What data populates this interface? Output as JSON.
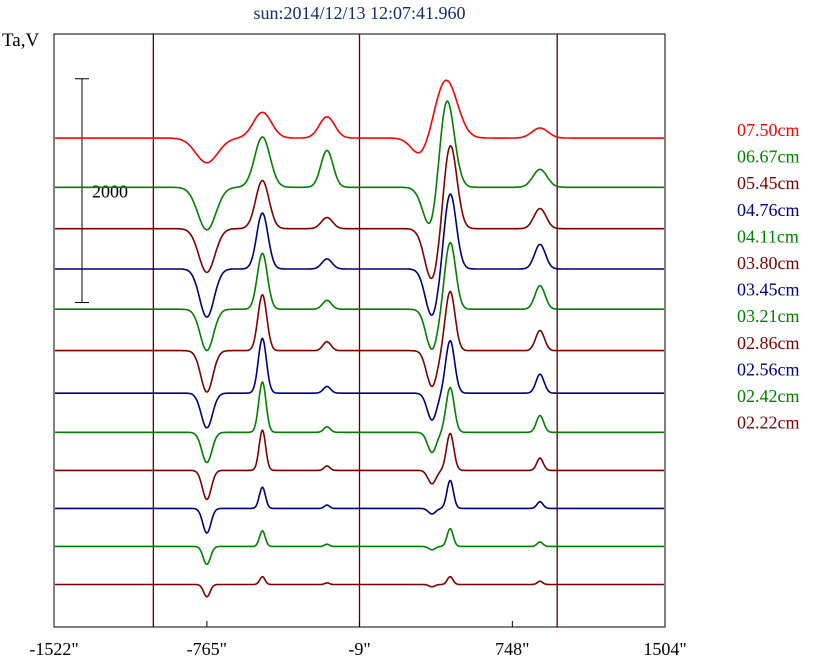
{
  "title": "sun:2014/12/13 12:07:41.960",
  "ylabel": "Ta,V",
  "chart_data": {
    "type": "line",
    "title": "sun:2014/12/13 12:07:41.960",
    "ylabel": "Ta,V",
    "xlabel": "",
    "x_ticks": [
      "-1522\"",
      "-765\"",
      "-9\"",
      "748\"",
      "1504\""
    ],
    "x_tick_values": [
      -1522,
      -765,
      -9,
      748,
      1504
    ],
    "xlim": [
      -1522,
      1504
    ],
    "scale_bar": {
      "label": "2000",
      "value": 2000
    },
    "reference_lines_x": [
      -1030,
      -9,
      970
    ],
    "grid": false,
    "legend_position": "right",
    "series": [
      {
        "name": "07.50cm",
        "color": "#ff0000",
        "baseline": 4370,
        "features": [
          [
            -765,
            -220,
            55
          ],
          [
            -490,
            230,
            45
          ],
          [
            -170,
            190,
            38
          ],
          [
            295,
            -160,
            45
          ],
          [
            420,
            520,
            55
          ],
          [
            885,
            90,
            40
          ]
        ]
      },
      {
        "name": "06.67cm",
        "color": "#008000",
        "baseline": 3930,
        "features": [
          [
            -765,
            -380,
            45
          ],
          [
            -490,
            450,
            38
          ],
          [
            -170,
            330,
            30
          ],
          [
            350,
            -420,
            40
          ],
          [
            420,
            850,
            38
          ],
          [
            885,
            160,
            35
          ]
        ]
      },
      {
        "name": "05.45cm",
        "color": "#800000",
        "baseline": 3560,
        "features": [
          [
            -765,
            -390,
            40
          ],
          [
            -490,
            430,
            33
          ],
          [
            -170,
            100,
            28
          ],
          [
            350,
            -460,
            36
          ],
          [
            440,
            760,
            33
          ],
          [
            885,
            180,
            30
          ]
        ]
      },
      {
        "name": "04.76cm",
        "color": "#000080",
        "baseline": 3200,
        "features": [
          [
            -765,
            -430,
            36
          ],
          [
            -490,
            500,
            28
          ],
          [
            -170,
            90,
            25
          ],
          [
            350,
            -420,
            33
          ],
          [
            440,
            680,
            30
          ],
          [
            885,
            220,
            27
          ]
        ]
      },
      {
        "name": "04.11cm",
        "color": "#008000",
        "baseline": 2840,
        "features": [
          [
            -765,
            -370,
            33
          ],
          [
            -490,
            500,
            25
          ],
          [
            -170,
            80,
            22
          ],
          [
            350,
            -360,
            30
          ],
          [
            440,
            600,
            27
          ],
          [
            885,
            210,
            25
          ]
        ]
      },
      {
        "name": "03.80cm",
        "color": "#800000",
        "baseline": 2470,
        "features": [
          [
            -765,
            -370,
            30
          ],
          [
            -490,
            500,
            22
          ],
          [
            -170,
            80,
            20
          ],
          [
            350,
            -320,
            27
          ],
          [
            440,
            530,
            24
          ],
          [
            885,
            180,
            22
          ]
        ]
      },
      {
        "name": "03.45cm",
        "color": "#000080",
        "baseline": 2090,
        "features": [
          [
            -765,
            -310,
            28
          ],
          [
            -490,
            490,
            20
          ],
          [
            -170,
            60,
            18
          ],
          [
            350,
            -240,
            24
          ],
          [
            440,
            470,
            22
          ],
          [
            885,
            170,
            20
          ]
        ]
      },
      {
        "name": "03.21cm",
        "color": "#008000",
        "baseline": 1740,
        "features": [
          [
            -765,
            -270,
            25
          ],
          [
            -490,
            450,
            18
          ],
          [
            -170,
            50,
            16
          ],
          [
            350,
            -180,
            22
          ],
          [
            440,
            400,
            20
          ],
          [
            885,
            150,
            18
          ]
        ]
      },
      {
        "name": "02.86cm",
        "color": "#800000",
        "baseline": 1400,
        "features": [
          [
            -765,
            -260,
            22
          ],
          [
            -490,
            360,
            16
          ],
          [
            -170,
            40,
            14
          ],
          [
            350,
            -120,
            20
          ],
          [
            440,
            330,
            18
          ],
          [
            885,
            110,
            16
          ]
        ]
      },
      {
        "name": "02.56cm",
        "color": "#000080",
        "baseline": 1060,
        "features": [
          [
            -765,
            -220,
            20
          ],
          [
            -490,
            190,
            15
          ],
          [
            -170,
            30,
            13
          ],
          [
            350,
            -50,
            18
          ],
          [
            440,
            250,
            16
          ],
          [
            885,
            60,
            15
          ]
        ]
      },
      {
        "name": "02.42cm",
        "color": "#008000",
        "baseline": 720,
        "features": [
          [
            -765,
            -160,
            18
          ],
          [
            -490,
            140,
            14
          ],
          [
            -170,
            20,
            12
          ],
          [
            350,
            -30,
            16
          ],
          [
            440,
            160,
            15
          ],
          [
            885,
            40,
            14
          ]
        ]
      },
      {
        "name": "02.22cm",
        "color": "#800000",
        "baseline": 380,
        "features": [
          [
            -765,
            -110,
            16
          ],
          [
            -490,
            70,
            13
          ],
          [
            -170,
            15,
            11
          ],
          [
            350,
            -20,
            15
          ],
          [
            440,
            70,
            14
          ],
          [
            885,
            30,
            13
          ]
        ]
      }
    ]
  }
}
